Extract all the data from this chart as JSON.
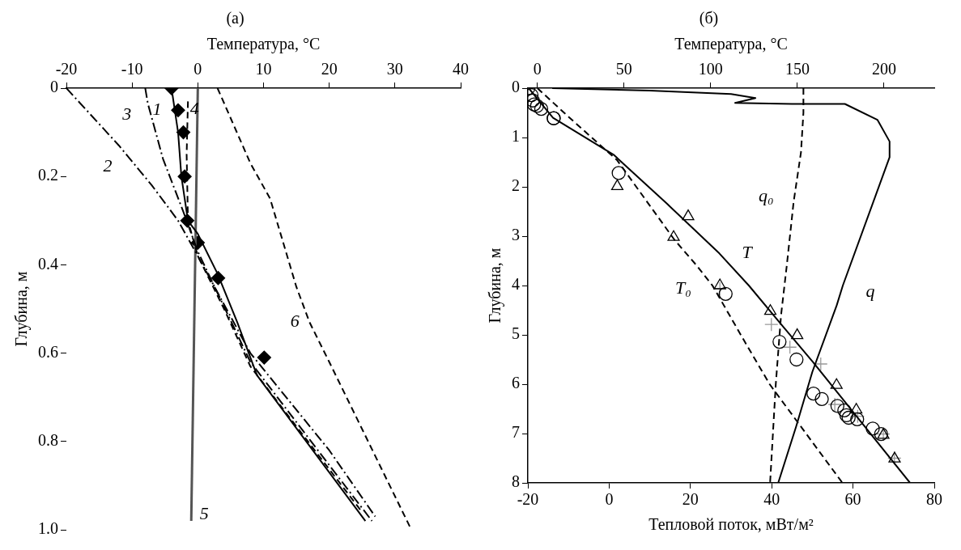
{
  "chart_data": [
    {
      "type": "line",
      "title": "(а)",
      "xlabel": "Температура, °C",
      "ylabel": "Глубина, м",
      "xlim": [
        -20,
        40
      ],
      "xticks": [
        -20,
        -10,
        0,
        10,
        20,
        30,
        40
      ],
      "ylim": [
        1.0,
        0
      ],
      "yticks": [
        0,
        0.2,
        0.4,
        0.6,
        0.8,
        {
          "value": 1,
          "label": "1.0"
        }
      ],
      "grid": false,
      "legend": false,
      "annotations": [
        {
          "text": "1",
          "x": -3.5,
          "y": 0.05
        },
        {
          "text": "2",
          "x": -12,
          "y": 0.13
        },
        {
          "text": "3",
          "x": -7.6,
          "y": 0.035
        },
        {
          "text": "4",
          "x": -1.5,
          "y": 0.03
        },
        {
          "text": "5",
          "x": -1,
          "y": 0.98
        },
        {
          "text": "6",
          "x": 17,
          "y": 0.53
        }
      ],
      "series": [
        {
          "color": "#000000",
          "line_style": "solid",
          "marker": "none",
          "x": [
            -4,
            -3.5,
            -3,
            -2.5,
            -1.5,
            0,
            3,
            6,
            9,
            25.5
          ],
          "values": [
            0,
            0.05,
            0.1,
            0.2,
            0.3,
            0.33,
            0.42,
            0.53,
            0.65,
            0.98
          ]
        },
        {
          "color": "#000000",
          "line_style": "dashdot",
          "marker": "none",
          "x": [
            -20,
            -12,
            -7,
            -3,
            0,
            8,
            20,
            27
          ],
          "values": [
            0,
            0.13,
            0.22,
            0.3,
            0.38,
            0.6,
            0.82,
            0.97
          ]
        },
        {
          "color": "#000000",
          "line_style": "dashdot",
          "marker": "none",
          "x": [
            -8,
            -7.6,
            -5.3,
            -2.2,
            0,
            8,
            26.5
          ],
          "values": [
            0,
            0.035,
            0.16,
            0.28,
            0.37,
            0.62,
            0.98
          ]
        },
        {
          "color": "#000000",
          "line_style": "dashed",
          "marker": "none",
          "x": [
            -1.5,
            -1.7,
            -1.5,
            0,
            4,
            8,
            25
          ],
          "values": [
            0.03,
            0.15,
            0.3,
            0.38,
            0.5,
            0.63,
            0.96
          ]
        },
        {
          "color": "#555555",
          "line_style": "solid",
          "marker": "none",
          "x": [
            0,
            -1
          ],
          "values": [
            0,
            0.98
          ]
        },
        {
          "color": "#000000",
          "line_style": "dashed",
          "marker": "none",
          "x": [
            3,
            8,
            11,
            15,
            17,
            20,
            32.5
          ],
          "values": [
            0,
            0.17,
            0.25,
            0.45,
            0.53,
            0.62,
            1.0
          ]
        },
        {
          "type": "scatter",
          "color": "#000000",
          "marker": "diamond",
          "x": [
            -4,
            -3,
            -2.2,
            -2,
            -1.6,
            0,
            3.1,
            10.1
          ],
          "values": [
            0,
            0.05,
            0.1,
            0.2,
            0.3,
            0.35,
            0.43,
            0.61
          ]
        }
      ]
    },
    {
      "type": "line",
      "title": "(б)",
      "xlabel": "Тепловой поток, мВт/м²",
      "x2label": "Температура, °C",
      "ylabel": "Глубина, м",
      "xlim": [
        -20,
        80
      ],
      "xticks": [
        -20,
        0,
        20,
        40,
        60,
        80
      ],
      "x2lim": [
        -5.5,
        229
      ],
      "x2ticks": [
        0,
        50,
        100,
        150,
        200
      ],
      "ylim": [
        8,
        0
      ],
      "yticks": [
        0,
        1,
        2,
        3,
        4,
        5,
        6,
        7,
        8
      ],
      "grid": false,
      "legend": false,
      "series": [
        {
          "name": "T",
          "axis": "x2",
          "color": "#000000",
          "line_style": "solid",
          "marker": "none",
          "x": [
            -5,
            9,
            44,
            75,
            105,
            122,
            141,
            159,
            215
          ],
          "values": [
            0,
            0.6,
            1.35,
            2.35,
            3.35,
            4.0,
            4.8,
            5.55,
            8
          ]
        },
        {
          "name": "T₀",
          "axis": "x2",
          "color": "#000000",
          "line_style": "dashed",
          "marker": "none",
          "x": [
            0,
            17,
            46,
            79,
            92,
            101,
            119,
            134,
            176
          ],
          "values": [
            0,
            0.55,
            1.46,
            3.07,
            3.6,
            4.0,
            5.1,
            6.0,
            8.0
          ]
        },
        {
          "name": "q",
          "color": "#000000",
          "line_style": "solid",
          "marker": "none",
          "x": [
            -14,
            10,
            30,
            36,
            31,
            45,
            58,
            66,
            69,
            69,
            57.5,
            56,
            50,
            46,
            41.6
          ],
          "values": [
            0,
            0.05,
            0.12,
            0.2,
            0.3,
            0.32,
            0.32,
            0.64,
            1.08,
            1.4,
            4.0,
            4.4,
            5.75,
            6.86,
            8
          ]
        },
        {
          "name": "q₀",
          "color": "#000000",
          "line_style": "dashed",
          "marker": "none",
          "x": [
            47.8,
            47.8,
            47.2,
            45.4,
            43.7,
            42.3,
            41,
            39.6
          ],
          "values": [
            0,
            0.5,
            1.3,
            2.3,
            3.6,
            4.6,
            6.0,
            8.0
          ]
        },
        {
          "type": "scatter",
          "axis": "x2",
          "color": "#000000",
          "marker": "circle",
          "x": [
            -5.2,
            -3.4,
            -2.6,
            -1.9,
            -0.2,
            2.2,
            9.4
          ],
          "values": [
            0,
            0.14,
            0.25,
            0.33,
            0.36,
            0.42,
            0.61
          ]
        },
        {
          "type": "scatter",
          "axis": "x2",
          "color": "#000000",
          "marker": "circle",
          "x": [
            9.4,
            46.9,
            108.6,
            139.7,
            149.5,
            159.3,
            164.1,
            173.1,
            177.1,
            178.3,
            179.6,
            184.5,
            193.5,
            198.3
          ],
          "values": [
            0.61,
            1.72,
            4.17,
            5.14,
            5.5,
            6.19,
            6.3,
            6.44,
            6.53,
            6.63,
            6.68,
            6.71,
            6.9,
            7.01
          ]
        },
        {
          "type": "scatter",
          "axis": "x2",
          "color": "#000000",
          "marker": "triangle",
          "x": [
            46.1,
            87,
            78.6,
            105.3,
            134.4,
            149.9,
            172.6,
            184,
            199.6,
            206.1
          ],
          "values": [
            1.99,
            2.6,
            3.02,
            4.0,
            4.52,
            5.01,
            6.02,
            6.52,
            7.03,
            7.51
          ]
        },
        {
          "type": "scatter",
          "axis": "x2",
          "color": "#999999",
          "marker": "cross",
          "x": [
            105.3,
            135,
            145.7,
            163.5,
            171.6,
            184.8,
            199.6,
            206
          ],
          "values": [
            4.06,
            4.79,
            5.25,
            5.59,
            6.41,
            6.65,
            7.01,
            7.5
          ]
        }
      ]
    }
  ]
}
